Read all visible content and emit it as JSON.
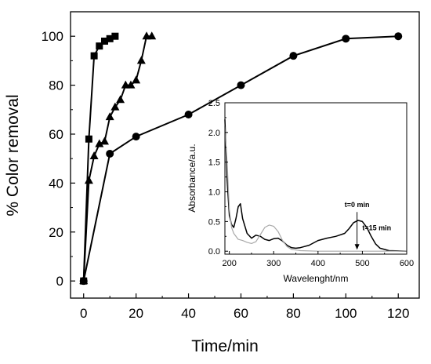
{
  "chart_data": [
    {
      "type": "line",
      "xlabel": "Time/min",
      "ylabel": "% Color removal",
      "xlim": [
        -5,
        128
      ],
      "ylim": [
        -7,
        110
      ],
      "xticks": [
        0,
        20,
        40,
        60,
        80,
        100,
        120
      ],
      "yticks": [
        0,
        20,
        40,
        60,
        80,
        100
      ],
      "grid": false,
      "legend": "none",
      "series": [
        {
          "marker": "square",
          "x": [
            0,
            2,
            4,
            6,
            8,
            10,
            12
          ],
          "y": [
            0,
            58,
            92,
            96,
            98,
            99,
            100
          ]
        },
        {
          "marker": "triangle",
          "x": [
            0,
            2,
            4,
            6,
            8,
            10,
            12,
            14,
            16,
            18,
            20,
            22,
            24,
            26
          ],
          "y": [
            0,
            41,
            51,
            56,
            57,
            67,
            71,
            74,
            80,
            80,
            82,
            90,
            100,
            100
          ]
        },
        {
          "marker": "circle",
          "x": [
            0,
            10,
            20,
            40,
            60,
            80,
            100,
            120
          ],
          "y": [
            0,
            52,
            59,
            68,
            80,
            92,
            99,
            100
          ]
        }
      ]
    },
    {
      "type": "line",
      "xlabel": "Wavelenght/nm",
      "ylabel": "Absorbance/a.u.",
      "xlim": [
        190,
        600
      ],
      "ylim": [
        -0.05,
        2.5
      ],
      "xticks": [
        200,
        300,
        400,
        500,
        600
      ],
      "yticks": [
        "0.0",
        "0.5",
        "1.0",
        "1.5",
        "2.0",
        "2.5"
      ],
      "grid": false,
      "series": [
        {
          "color": "#000000",
          "x": [
            190,
            195,
            200,
            205,
            210,
            215,
            220,
            225,
            230,
            240,
            250,
            260,
            270,
            280,
            290,
            300,
            310,
            320,
            330,
            340,
            350,
            360,
            380,
            400,
            420,
            440,
            460,
            470,
            480,
            490,
            500,
            510,
            520,
            530,
            540,
            560,
            600
          ],
          "y": [
            2.22,
            1.2,
            0.6,
            0.45,
            0.4,
            0.55,
            0.75,
            0.8,
            0.55,
            0.3,
            0.22,
            0.27,
            0.25,
            0.2,
            0.18,
            0.21,
            0.22,
            0.17,
            0.1,
            0.06,
            0.05,
            0.06,
            0.1,
            0.18,
            0.22,
            0.25,
            0.3,
            0.38,
            0.48,
            0.52,
            0.5,
            0.4,
            0.25,
            0.12,
            0.05,
            0.01,
            0.0
          ]
        },
        {
          "color": "#a9a9a9",
          "x": [
            190,
            195,
            200,
            205,
            210,
            220,
            230,
            240,
            250,
            260,
            270,
            280,
            290,
            300,
            310,
            320,
            330,
            340,
            360,
            400,
            600
          ],
          "y": [
            2.1,
            1.5,
            0.7,
            0.4,
            0.3,
            0.2,
            0.18,
            0.15,
            0.13,
            0.16,
            0.28,
            0.4,
            0.44,
            0.42,
            0.33,
            0.18,
            0.08,
            0.03,
            0.01,
            0.0,
            0.0
          ]
        }
      ],
      "annotations": [
        {
          "text": "t=0 min",
          "x": 488,
          "y": 0.74,
          "color": "#000000"
        },
        {
          "text": "t=15 min",
          "x": 500,
          "y": 0.35,
          "color": "#8a8a8a"
        }
      ]
    }
  ]
}
